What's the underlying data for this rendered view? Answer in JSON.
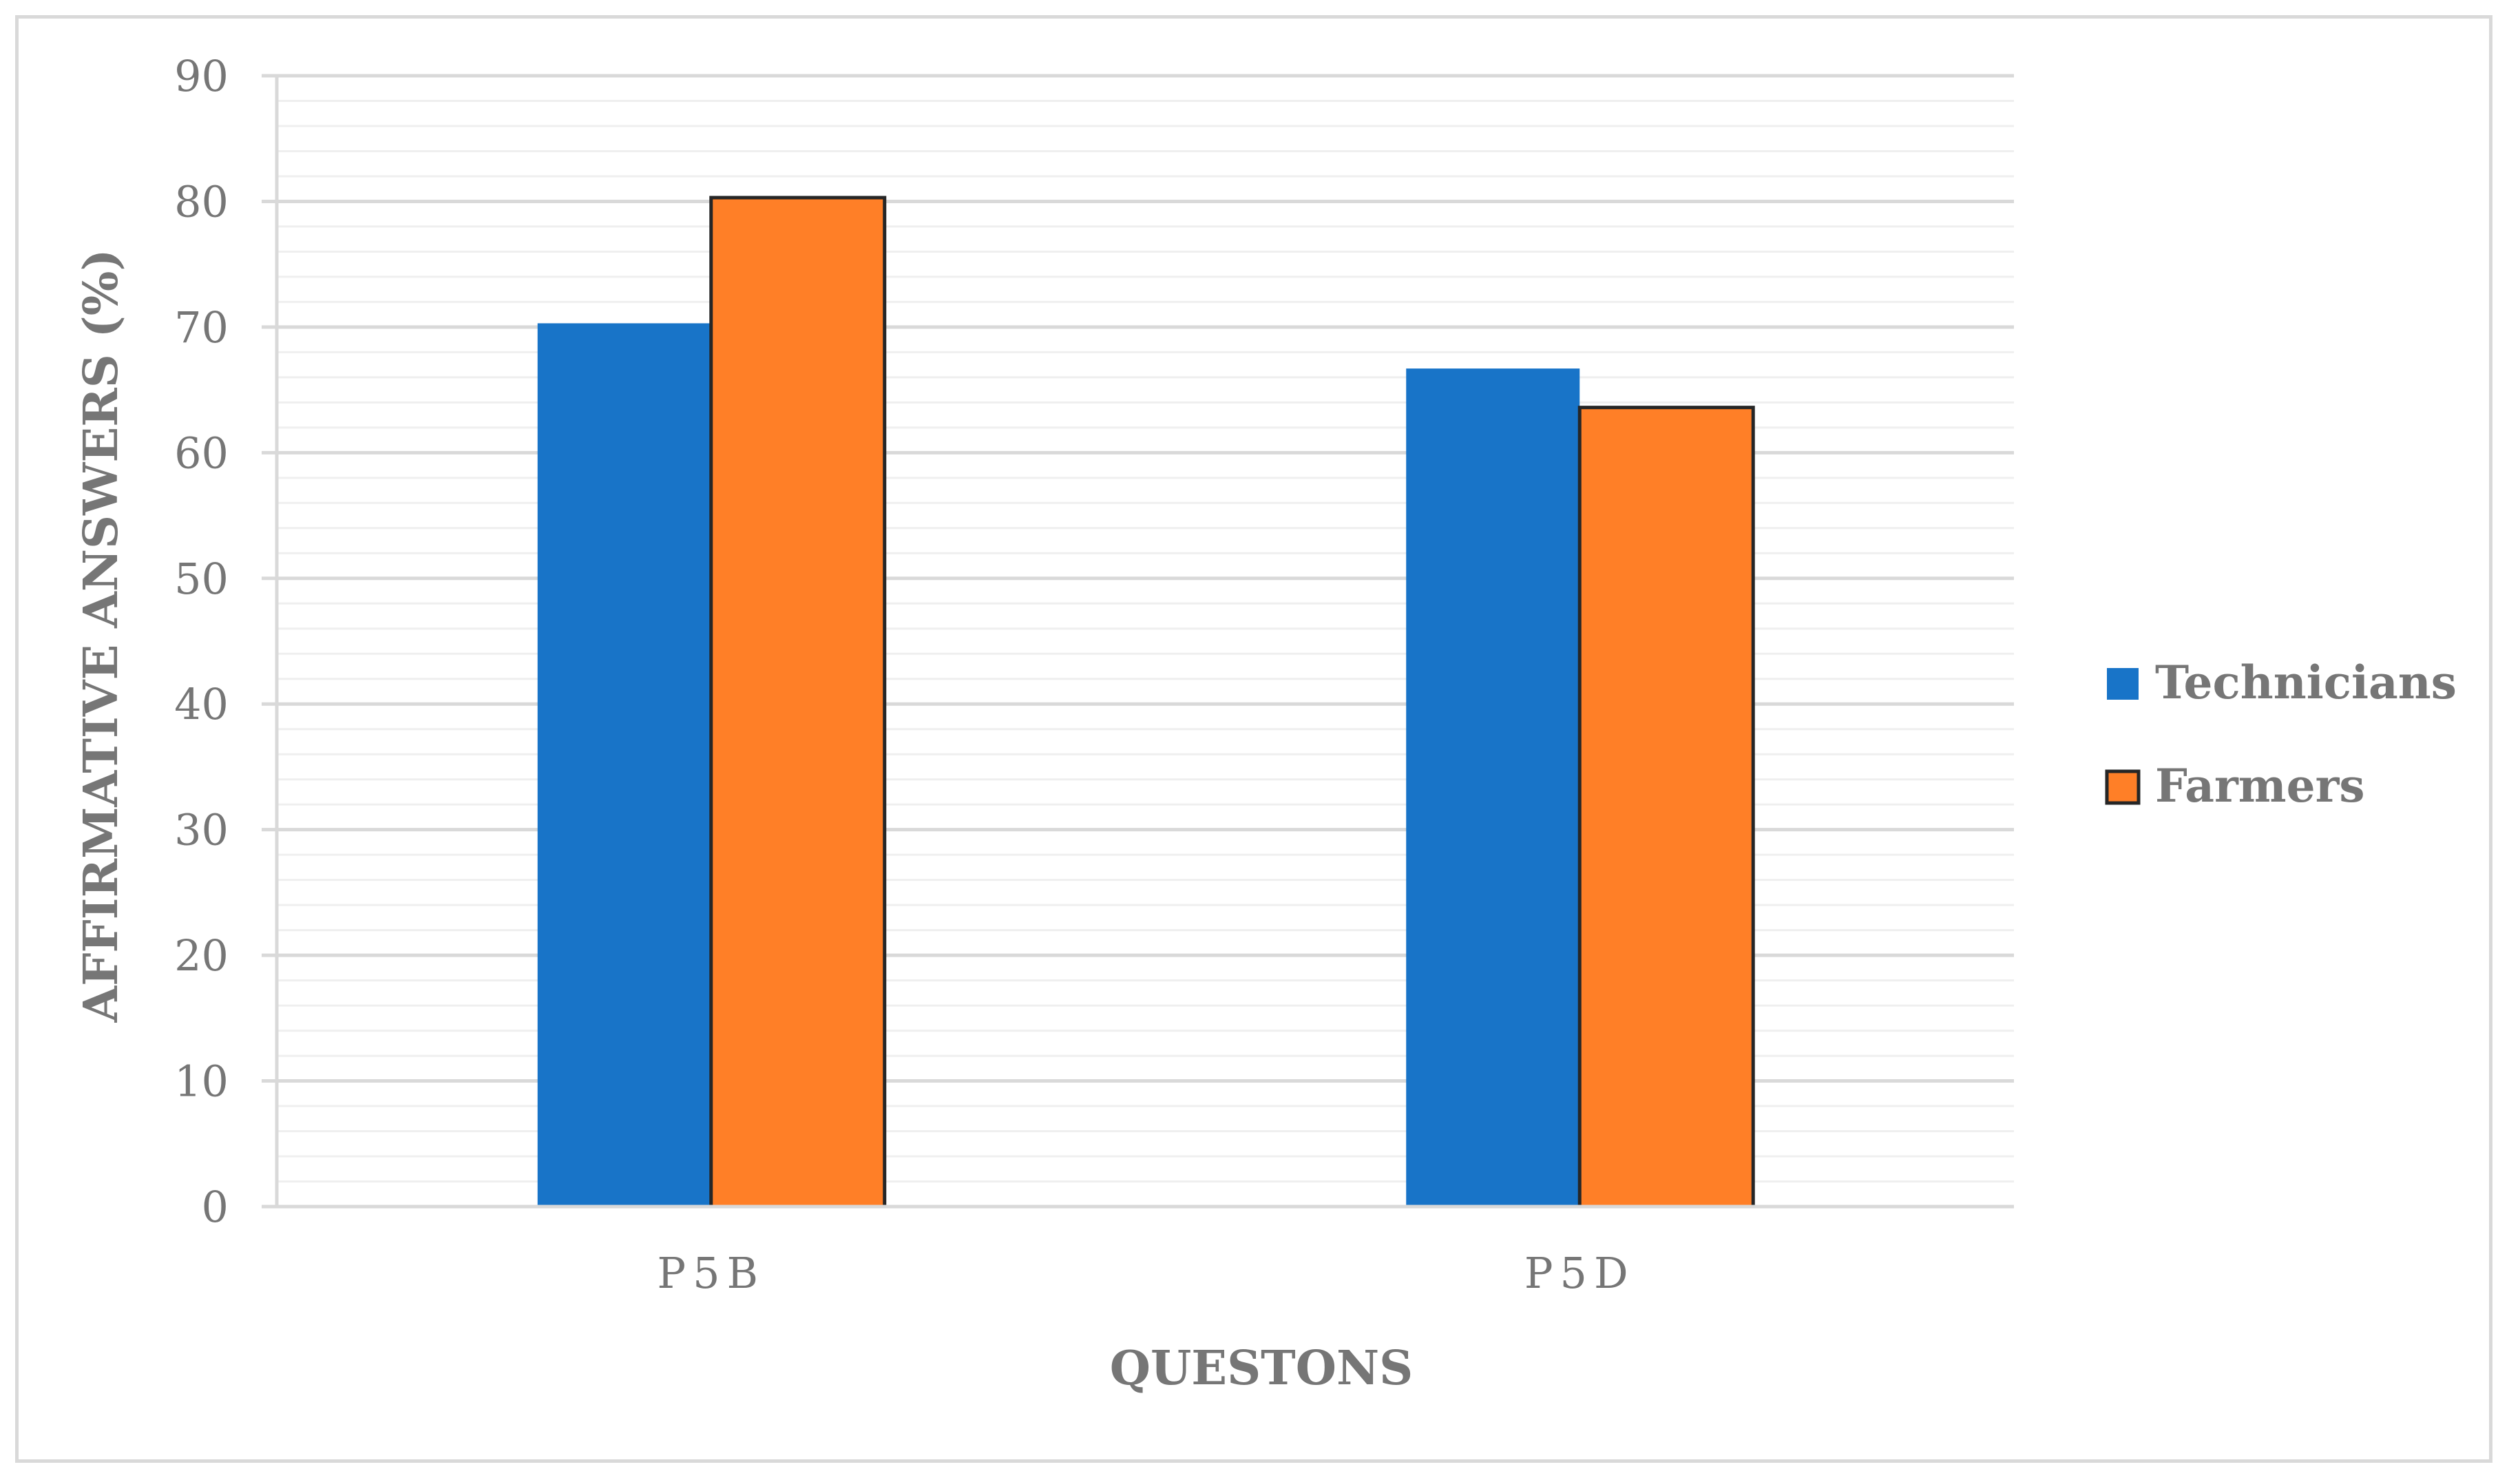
{
  "chart_data": {
    "type": "bar",
    "categories": [
      "P5B",
      "P5D"
    ],
    "series": [
      {
        "name": "Technicians",
        "values": [
          70.3,
          66.7
        ],
        "color": "#1874c8",
        "outlined": false
      },
      {
        "name": "Farmers",
        "values": [
          80.3,
          63.6
        ],
        "color": "#ff7f27",
        "outlined": true
      }
    ],
    "title": "",
    "xlabel": "QUESTONS",
    "ylabel": "AFFIRMATIVE ANSWERS (%)",
    "ylim": [
      0,
      90
    ],
    "yticks": [
      0,
      10,
      20,
      30,
      40,
      50,
      60,
      70,
      80,
      90
    ],
    "grid": true,
    "legend_position": "right"
  }
}
